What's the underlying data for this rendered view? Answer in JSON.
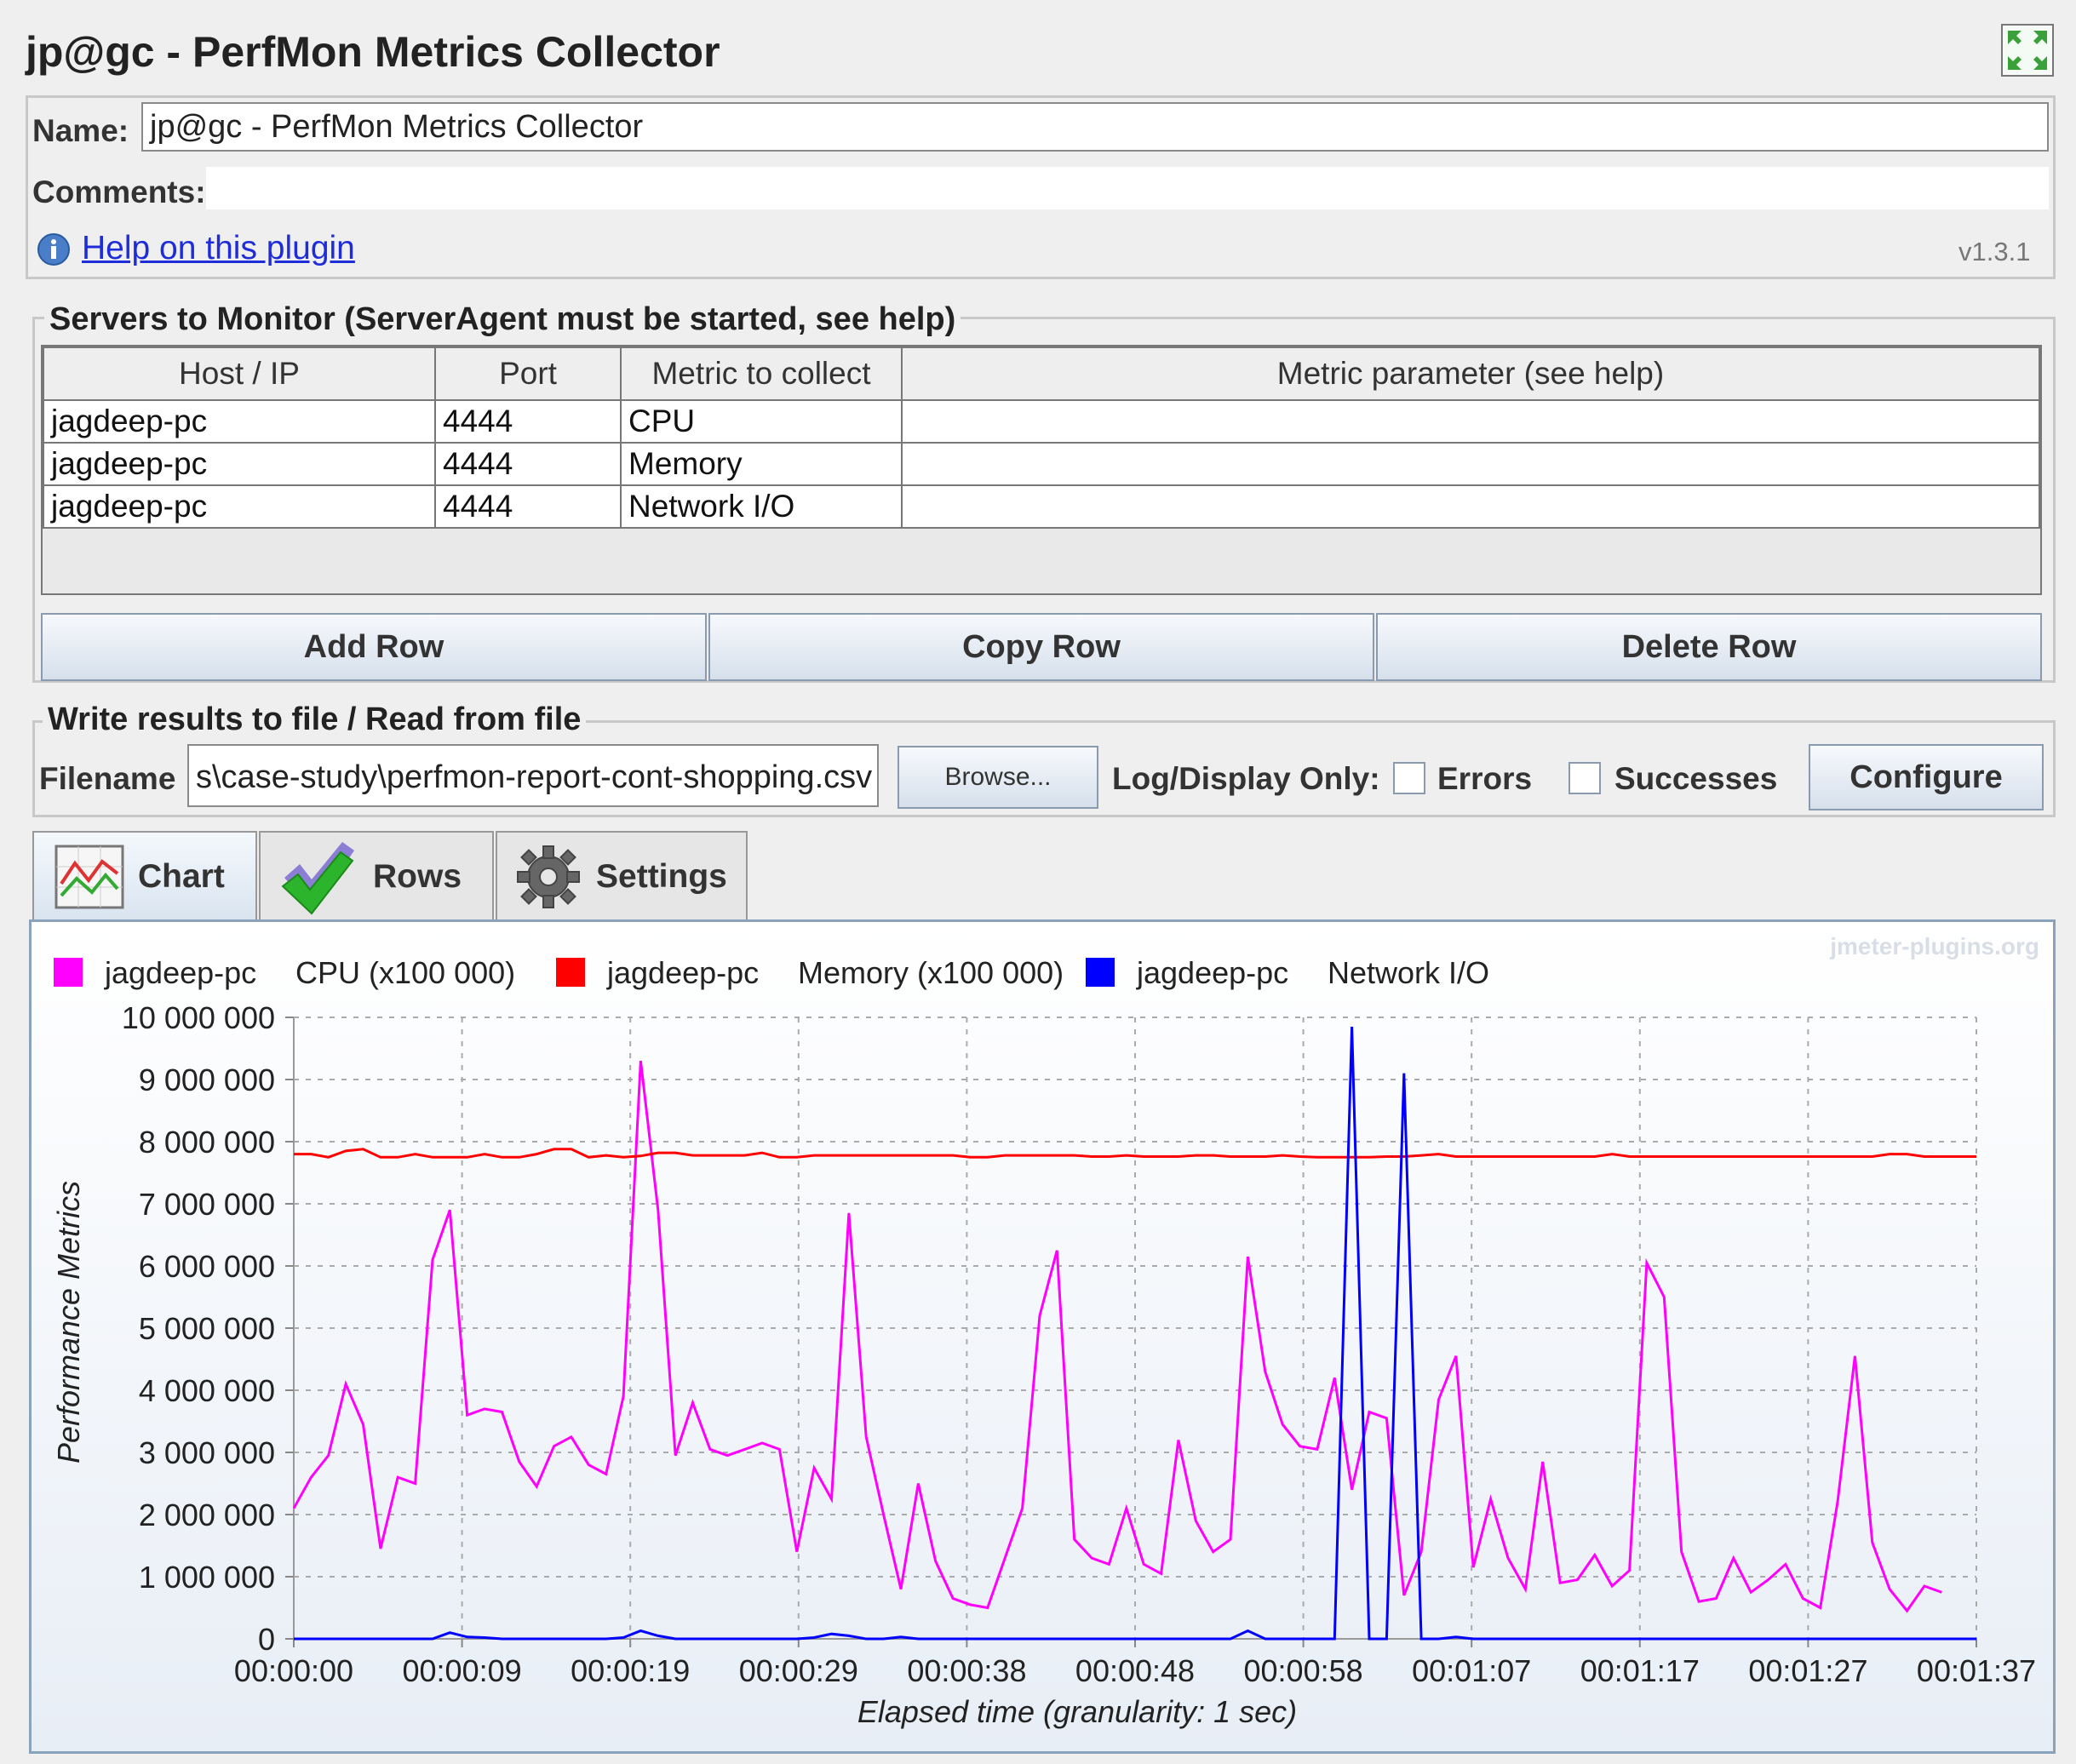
{
  "title": "jp@gc - PerfMon Metrics Collector",
  "name_label": "Name:",
  "name_value": "jp@gc - PerfMon Metrics Collector",
  "comments_label": "Comments:",
  "help_link": "Help on this plugin",
  "version": "v1.3.1",
  "servers": {
    "group_title": "Servers to Monitor (ServerAgent must be started, see help)",
    "columns": [
      "Host / IP",
      "Port",
      "Metric to collect",
      "Metric parameter (see help)"
    ],
    "rows": [
      [
        "jagdeep-pc",
        "4444",
        "CPU",
        ""
      ],
      [
        "jagdeep-pc",
        "4444",
        "Memory",
        ""
      ],
      [
        "jagdeep-pc",
        "4444",
        "Network I/O",
        ""
      ]
    ],
    "add_row": "Add Row",
    "copy_row": "Copy Row",
    "delete_row": "Delete Row"
  },
  "file": {
    "group_title": "Write results to file / Read from file",
    "filename_label": "Filename",
    "filename_value": "s\\case-study\\perfmon-report-cont-shopping.csv",
    "browse": "Browse...",
    "log_label": "Log/Display Only:",
    "errors": "Errors",
    "successes": "Successes",
    "configure": "Configure"
  },
  "tabs": [
    {
      "label": "Chart",
      "icon": "chart-icon"
    },
    {
      "label": "Rows",
      "icon": "checkmark-icon"
    },
    {
      "label": "Settings",
      "icon": "gear-icon"
    }
  ],
  "chart_data": {
    "type": "line",
    "watermark": "jmeter-plugins.org",
    "ylabel": "Performance Metrics",
    "xlabel": "Elapsed time (granularity: 1 sec)",
    "ylim": [
      0,
      10000000
    ],
    "yticks": [
      "0",
      "1 000 000",
      "2 000 000",
      "3 000 000",
      "4 000 000",
      "5 000 000",
      "6 000 000",
      "7 000 000",
      "8 000 000",
      "9 000 000",
      "10 000 000"
    ],
    "xlim": [
      0,
      97
    ],
    "xticks": [
      "00:00:00",
      "00:00:09",
      "00:00:19",
      "00:00:29",
      "00:00:38",
      "00:00:48",
      "00:00:58",
      "00:01:07",
      "00:01:17",
      "00:01:27",
      "00:01:37"
    ],
    "grid": true,
    "legend_position": "top-left",
    "series": [
      {
        "name": "jagdeep-pc",
        "metric": "CPU (x100 000)",
        "color": "#ff00ff",
        "values": [
          2100000,
          2600000,
          2950000,
          4100000,
          3450000,
          1450000,
          2600000,
          2500000,
          6100000,
          6900000,
          3600000,
          3700000,
          3650000,
          2850000,
          2450000,
          3100000,
          3250000,
          2800000,
          2650000,
          3900000,
          9300000,
          6900000,
          2950000,
          3800000,
          3050000,
          2950000,
          3050000,
          3150000,
          3050000,
          1400000,
          2750000,
          2250000,
          6850000,
          3250000,
          2000000,
          800000,
          2500000,
          1250000,
          650000,
          550000,
          500000,
          1300000,
          2100000,
          5200000,
          6250000,
          1600000,
          1300000,
          1200000,
          2100000,
          1200000,
          1050000,
          3200000,
          1900000,
          1400000,
          1600000,
          6150000,
          4300000,
          3450000,
          3100000,
          3050000,
          4200000,
          2400000,
          3650000,
          3550000,
          700000,
          1400000,
          3850000,
          4550000,
          1150000,
          2250000,
          1300000,
          800000,
          2850000,
          900000,
          950000,
          1350000,
          850000,
          1100000,
          6050000,
          5500000,
          1400000,
          600000,
          650000,
          1300000,
          750000,
          950000,
          1200000,
          650000,
          500000,
          2200000,
          4550000,
          1550000,
          800000,
          450000,
          850000,
          750000
        ]
      },
      {
        "name": "jagdeep-pc",
        "metric": "Memory (x100 000)",
        "color": "#ff0000",
        "values": [
          7800000,
          7800000,
          7750000,
          7850000,
          7880000,
          7750000,
          7750000,
          7800000,
          7750000,
          7750000,
          7750000,
          7800000,
          7750000,
          7750000,
          7800000,
          7880000,
          7880000,
          7750000,
          7780000,
          7750000,
          7770000,
          7820000,
          7820000,
          7780000,
          7780000,
          7780000,
          7780000,
          7820000,
          7750000,
          7750000,
          7780000,
          7780000,
          7780000,
          7780000,
          7780000,
          7780000,
          7780000,
          7780000,
          7780000,
          7750000,
          7750000,
          7780000,
          7780000,
          7780000,
          7780000,
          7780000,
          7760000,
          7760000,
          7780000,
          7760000,
          7760000,
          7760000,
          7780000,
          7780000,
          7760000,
          7760000,
          7760000,
          7780000,
          7760000,
          7750000,
          7750000,
          7750000,
          7750000,
          7760000,
          7760000,
          7780000,
          7800000,
          7760000,
          7760000,
          7760000,
          7760000,
          7760000,
          7760000,
          7760000,
          7760000,
          7760000,
          7800000,
          7760000,
          7760000,
          7760000,
          7760000,
          7760000,
          7760000,
          7760000,
          7760000,
          7760000,
          7760000,
          7760000,
          7760000,
          7760000,
          7760000,
          7760000,
          7800000,
          7800000,
          7760000,
          7760000,
          7760000,
          7760000
        ]
      },
      {
        "name": "jagdeep-pc",
        "metric": "Network I/O",
        "color": "#0000ff",
        "values": [
          0,
          0,
          0,
          0,
          0,
          0,
          0,
          0,
          0,
          100000,
          30000,
          20000,
          0,
          0,
          0,
          0,
          0,
          0,
          0,
          20000,
          130000,
          50000,
          0,
          0,
          0,
          0,
          0,
          0,
          0,
          0,
          20000,
          80000,
          50000,
          0,
          0,
          30000,
          0,
          0,
          0,
          0,
          0,
          0,
          0,
          0,
          0,
          0,
          0,
          0,
          0,
          0,
          0,
          0,
          0,
          0,
          0,
          130000,
          0,
          0,
          0,
          0,
          0,
          9850000,
          0,
          0,
          9100000,
          0,
          0,
          30000,
          0,
          0,
          0,
          0,
          0,
          0,
          0,
          0,
          0,
          0,
          0,
          0,
          0,
          0,
          0,
          0,
          0,
          0,
          0,
          0,
          0,
          0,
          0,
          0,
          0,
          0,
          0,
          0,
          0,
          0
        ]
      }
    ]
  }
}
